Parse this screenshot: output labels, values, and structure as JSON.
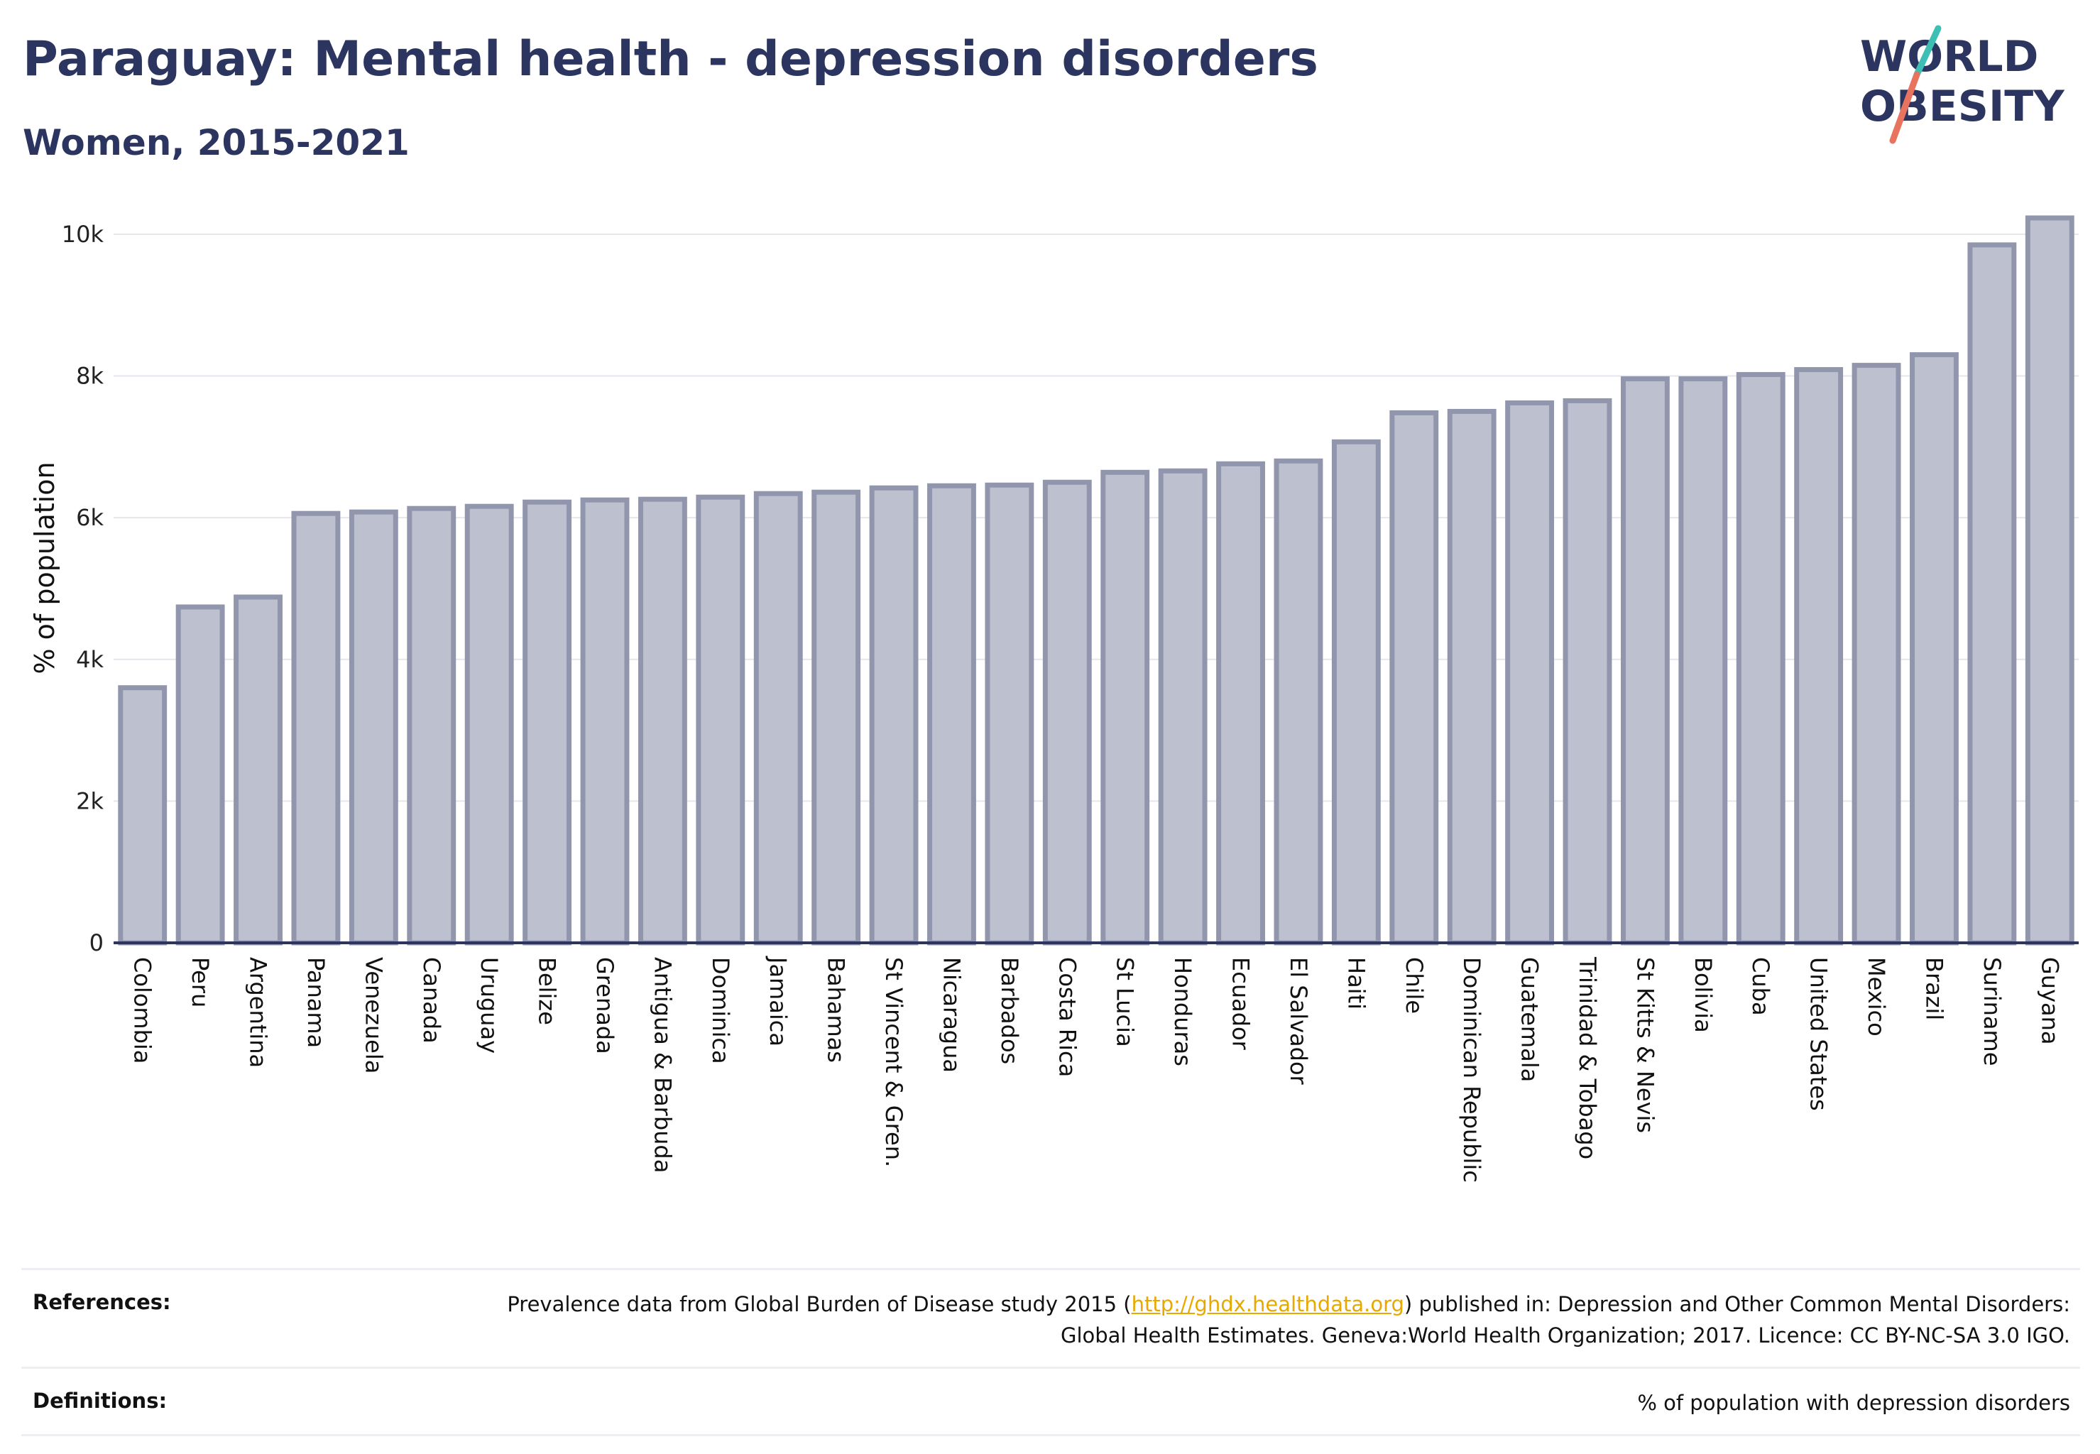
{
  "title": "Paraguay: Mental health - depression disorders",
  "subtitle": "Women, 2015-2021",
  "logo": {
    "line1": "WORLD",
    "line2": "OBESITY",
    "accent_teal": "#3dbfb4",
    "accent_coral": "#e8735e",
    "text_color": "#2b3560"
  },
  "chart_data": {
    "type": "bar",
    "ylabel": "% of population",
    "xlabel": "",
    "ylim": [
      0,
      10300
    ],
    "yticks": [
      0,
      2000,
      4000,
      6000,
      8000,
      10000
    ],
    "ytick_labels": [
      "0",
      "2k",
      "4k",
      "6k",
      "8k",
      "10k"
    ],
    "grid": true,
    "bar_color": "#bcc0cf",
    "bar_edge_color": "#9196ad",
    "categories": [
      "Colombia",
      "Peru",
      "Argentina",
      "Panama",
      "Venezuela",
      "Canada",
      "Uruguay",
      "Belize",
      "Grenada",
      "Antigua & Barbuda",
      "Dominica",
      "Jamaica",
      "Bahamas",
      "St Vincent & Gren.",
      "Nicaragua",
      "Barbados",
      "Costa Rica",
      "St Lucia",
      "Honduras",
      "Ecuador",
      "El Salvador",
      "Haiti",
      "Chile",
      "Dominican Republic",
      "Guatemala",
      "Trinidad & Tobago",
      "St Kitts & Nevis",
      "Bolivia",
      "Cuba",
      "United States",
      "Mexico",
      "Brazil",
      "Suriname",
      "Guyana"
    ],
    "values": [
      3600,
      4740,
      4880,
      6060,
      6080,
      6130,
      6160,
      6220,
      6250,
      6260,
      6290,
      6340,
      6360,
      6420,
      6450,
      6460,
      6500,
      6640,
      6660,
      6760,
      6800,
      7070,
      7480,
      7500,
      7620,
      7650,
      7960,
      7960,
      8020,
      8090,
      8150,
      8300,
      9850,
      10230
    ]
  },
  "footer": {
    "references_label": "References:",
    "references_pre": "Prevalence data from Global Burden of Disease study 2015 (",
    "references_link": "http://ghdx.healthdata.org",
    "references_post": ") published in: Depression and Other Common Mental Disorders: Global Health Estimates. Geneva:World Health Organization; 2017. Licence: CC BY-NC-SA 3.0 IGO.",
    "definitions_label": "Definitions:",
    "definitions_text": "% of population with depression disorders"
  }
}
